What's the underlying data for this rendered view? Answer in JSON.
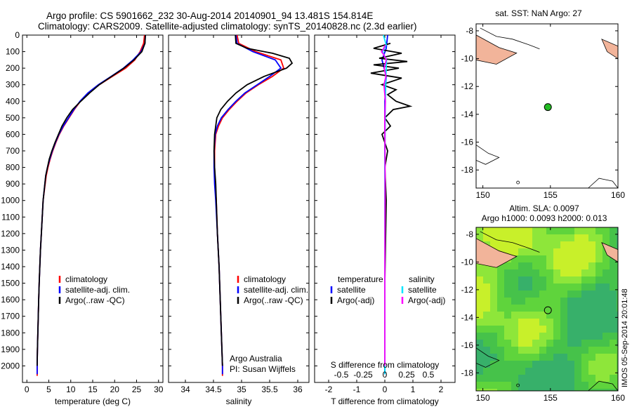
{
  "header": {
    "title_line1": "Argo profile: CS 5901662_232 30-Aug-2014 20140901_94 13.481S 154.814E",
    "title_line2": "Climatology: CARS2009. Satellite-adjusted climatology: synTS_20140828.nc (2.3d earlier)"
  },
  "colors": {
    "climatology": "#ff0000",
    "satellite": "#0000ff",
    "argo": "#000000",
    "satellite_diff": "#00e5ff",
    "argo_s_diff": "#ff00ff",
    "float_marker": "#22bb22",
    "land": "#f2b49a"
  },
  "footer": {
    "credit1": "Argo Australia",
    "credit2": "PI: Susan Wijffels",
    "timestamp": "IMOS 05-Sep-2014 20:01:48"
  },
  "chart_data": [
    {
      "type": "line",
      "name": "temperature-profile",
      "xlabel": "temperature (deg C)",
      "ylabel": "",
      "xlim": [
        -1,
        31
      ],
      "ylim": [
        2100,
        0
      ],
      "xticks": [
        0,
        5,
        10,
        15,
        20,
        25,
        30
      ],
      "yticks": [
        0,
        100,
        200,
        300,
        400,
        500,
        600,
        700,
        800,
        900,
        1000,
        1100,
        1200,
        1300,
        1400,
        1500,
        1600,
        1700,
        1800,
        1900,
        2000
      ],
      "legend": {
        "placement": "lower-middle",
        "entries": [
          "climatology",
          "satellite-adj. clim.",
          "Argo(..raw -QC)"
        ]
      },
      "series": [
        {
          "name": "climatology",
          "color": "#ff0000",
          "x": [
            26.8,
            26.6,
            25.8,
            24.6,
            22.5,
            19.5,
            16.5,
            14.0,
            12.2,
            10.8,
            9.6,
            8.4,
            7.4,
            6.6,
            5.9,
            5.3,
            4.8,
            4.4,
            3.7,
            3.3,
            3.1,
            2.8,
            2.7,
            2.6,
            2.5,
            2.4,
            2.35,
            2.35
          ],
          "y": [
            0,
            50,
            100,
            150,
            200,
            250,
            300,
            350,
            400,
            450,
            500,
            550,
            600,
            650,
            700,
            750,
            800,
            850,
            1000,
            1200,
            1300,
            1500,
            1600,
            1700,
            1800,
            1900,
            2000,
            2060
          ]
        },
        {
          "name": "satellite-adj. clim.",
          "color": "#0000ff",
          "x": [
            27.0,
            26.9,
            26.0,
            24.2,
            22.0,
            19.2,
            16.3,
            13.9,
            12.1,
            10.7,
            9.5,
            8.3,
            7.3,
            6.5,
            5.8,
            5.2,
            4.7,
            4.3,
            3.7,
            3.3,
            3.1,
            2.8,
            2.7,
            2.6,
            2.5,
            2.4,
            2.35,
            2.35
          ],
          "y": [
            0,
            50,
            100,
            150,
            200,
            250,
            300,
            350,
            400,
            450,
            500,
            550,
            600,
            650,
            700,
            750,
            800,
            850,
            1000,
            1200,
            1300,
            1500,
            1600,
            1700,
            1800,
            1900,
            2000,
            2050
          ]
        },
        {
          "name": "Argo(..raw -QC)",
          "color": "#000000",
          "x": [
            27.0,
            26.9,
            26.2,
            24.4,
            22.1,
            19.3,
            16.5,
            14.3,
            12.3,
            10.4,
            9.1,
            8.0,
            7.2,
            6.4,
            5.7,
            5.1,
            4.7,
            4.3,
            3.7,
            3.3,
            3.1,
            2.8,
            2.7,
            2.6,
            2.5,
            2.4,
            2.35
          ],
          "y": [
            0,
            50,
            100,
            150,
            200,
            250,
            300,
            350,
            400,
            450,
            500,
            550,
            600,
            650,
            700,
            750,
            800,
            850,
            1000,
            1200,
            1300,
            1500,
            1600,
            1700,
            1800,
            1900,
            2000
          ]
        }
      ]
    },
    {
      "type": "line",
      "name": "salinity-profile",
      "xlabel": "salinity",
      "ylabel": "",
      "xlim": [
        33.7,
        36.2
      ],
      "ylim": [
        2100,
        0
      ],
      "xticks": [
        34,
        34.5,
        35,
        35.5,
        36
      ],
      "xtick_labels": [
        "34",
        "34.5",
        "35",
        "35.5",
        "36"
      ],
      "legend": {
        "placement": "lower-right",
        "entries": [
          "climatology",
          "satellite-adj. clim.",
          "Argo(..raw -QC)"
        ]
      },
      "series": [
        {
          "name": "climatology",
          "color": "#ff0000",
          "x": [
            34.92,
            34.95,
            35.25,
            35.7,
            35.75,
            35.55,
            35.3,
            35.08,
            34.92,
            34.78,
            34.66,
            34.59,
            34.54,
            34.52,
            34.52,
            34.53,
            34.55,
            34.57,
            34.6,
            34.62,
            34.64,
            34.65,
            34.66,
            34.66
          ],
          "y": [
            0,
            50,
            100,
            150,
            200,
            250,
            300,
            350,
            400,
            450,
            500,
            550,
            600,
            700,
            800,
            900,
            1000,
            1200,
            1400,
            1600,
            1800,
            1900,
            2000,
            2060
          ]
        },
        {
          "name": "satellite-adj. clim.",
          "color": "#0000ff",
          "x": [
            34.9,
            34.92,
            35.2,
            35.6,
            35.7,
            35.5,
            35.28,
            35.06,
            34.9,
            34.76,
            34.64,
            34.57,
            34.53,
            34.51,
            34.51,
            34.52,
            34.54,
            34.57,
            34.6,
            34.62,
            34.64,
            34.65,
            34.66,
            34.66
          ],
          "y": [
            0,
            50,
            100,
            150,
            200,
            250,
            300,
            350,
            400,
            450,
            500,
            550,
            600,
            700,
            800,
            900,
            1000,
            1200,
            1400,
            1600,
            1800,
            1900,
            2000,
            2050
          ]
        },
        {
          "name": "Argo(..raw -QC)",
          "color": "#000000",
          "x": [
            34.89,
            34.9,
            35.1,
            35.55,
            35.85,
            35.9,
            35.8,
            35.4,
            35.1,
            34.9,
            34.75,
            34.63,
            34.56,
            34.52,
            34.51,
            34.52,
            34.54,
            34.57,
            34.6,
            34.62,
            34.64,
            34.65,
            34.66
          ],
          "y": [
            0,
            50,
            80,
            110,
            140,
            170,
            200,
            250,
            300,
            350,
            400,
            450,
            500,
            600,
            700,
            800,
            900,
            1200,
            1400,
            1600,
            1800,
            1900,
            2000
          ]
        }
      ]
    },
    {
      "type": "line",
      "name": "difference-profile",
      "xlabel": "T difference from climatology",
      "top_axis_label": "S difference from climatology",
      "xlim": [
        -2.5,
        2.5
      ],
      "ylim": [
        2100,
        0
      ],
      "xticks": [
        -2,
        -1,
        0,
        1,
        2
      ],
      "top_xticks": [
        "-0.5",
        "-0.25",
        "0",
        "0.25",
        "0.5"
      ],
      "legend": {
        "placement": "lower",
        "groups": [
          {
            "title": "temperature",
            "entries": [
              "satellite",
              "Argo(-adj)"
            ]
          },
          {
            "title": "salinity",
            "entries": [
              "satellite",
              "Argo(-adj)"
            ]
          }
        ]
      },
      "series": [
        {
          "name": "temperature satellite",
          "color": "#0000ff",
          "x": [
            0.1,
            0.05,
            -0.1,
            0.05,
            0.0,
            0.0,
            0.0,
            0.0,
            0.0,
            0.0
          ],
          "y": [
            0,
            80,
            150,
            250,
            400,
            600,
            800,
            1000,
            1500,
            2050
          ]
        },
        {
          "name": "temperature Argo(-adj)",
          "color": "#000000",
          "x": [
            0.2,
            -0.4,
            0.6,
            -0.2,
            0.8,
            -0.4,
            0.5,
            -0.5,
            0.6,
            -0.1,
            0.4,
            0.1,
            0.4,
            0.9,
            0.3,
            0.0,
            0.2,
            -0.1,
            0.1,
            0.0,
            0.05,
            0.0,
            0.0
          ],
          "y": [
            50,
            80,
            110,
            140,
            160,
            180,
            200,
            230,
            260,
            300,
            330,
            360,
            400,
            430,
            450,
            500,
            550,
            600,
            700,
            800,
            1000,
            1500,
            2000
          ]
        },
        {
          "name": "salinity satellite",
          "color": "#00e5ff",
          "x": [
            -0.05,
            0.05,
            -0.08,
            0.06,
            0.04,
            0.02,
            0.01,
            0.0,
            0.0,
            0.0
          ],
          "y": [
            0,
            60,
            100,
            150,
            250,
            400,
            600,
            800,
            1500,
            2050
          ]
        },
        {
          "name": "salinity Argo(-adj)",
          "color": "#ff00ff",
          "x": [
            0.02,
            -0.07,
            -0.12,
            -0.03,
            0.05,
            -0.02,
            0.04,
            -0.03,
            0.02,
            0.0,
            0.01,
            0.0,
            0.0
          ],
          "y": [
            60,
            90,
            100,
            120,
            150,
            200,
            250,
            300,
            400,
            500,
            800,
            1500,
            2000
          ]
        }
      ]
    },
    {
      "type": "scatter",
      "name": "sst-map",
      "title": "sat. SST: NaN Argo: 27",
      "xlim": [
        149.5,
        160
      ],
      "ylim": [
        -19.3,
        -7.5
      ],
      "xticks": [
        150,
        155,
        160
      ],
      "yticks": [
        -8,
        -10,
        -12,
        -14,
        -16,
        -18
      ],
      "points": [
        {
          "x": 154.814,
          "y": -13.481
        }
      ]
    },
    {
      "type": "heatmap",
      "name": "sla-map",
      "title_line1": "Altim. SLA: 0.0097",
      "title_line2": "Argo h1000: 0.0093 h2000: 0.013",
      "xlim": [
        149.5,
        160
      ],
      "ylim": [
        -19.3,
        -7.5
      ],
      "xticks": [
        150,
        155,
        160
      ],
      "yticks": [
        -8,
        -10,
        -12,
        -14,
        -16,
        -18
      ],
      "points": [
        {
          "x": 154.814,
          "y": -13.481
        }
      ]
    }
  ]
}
